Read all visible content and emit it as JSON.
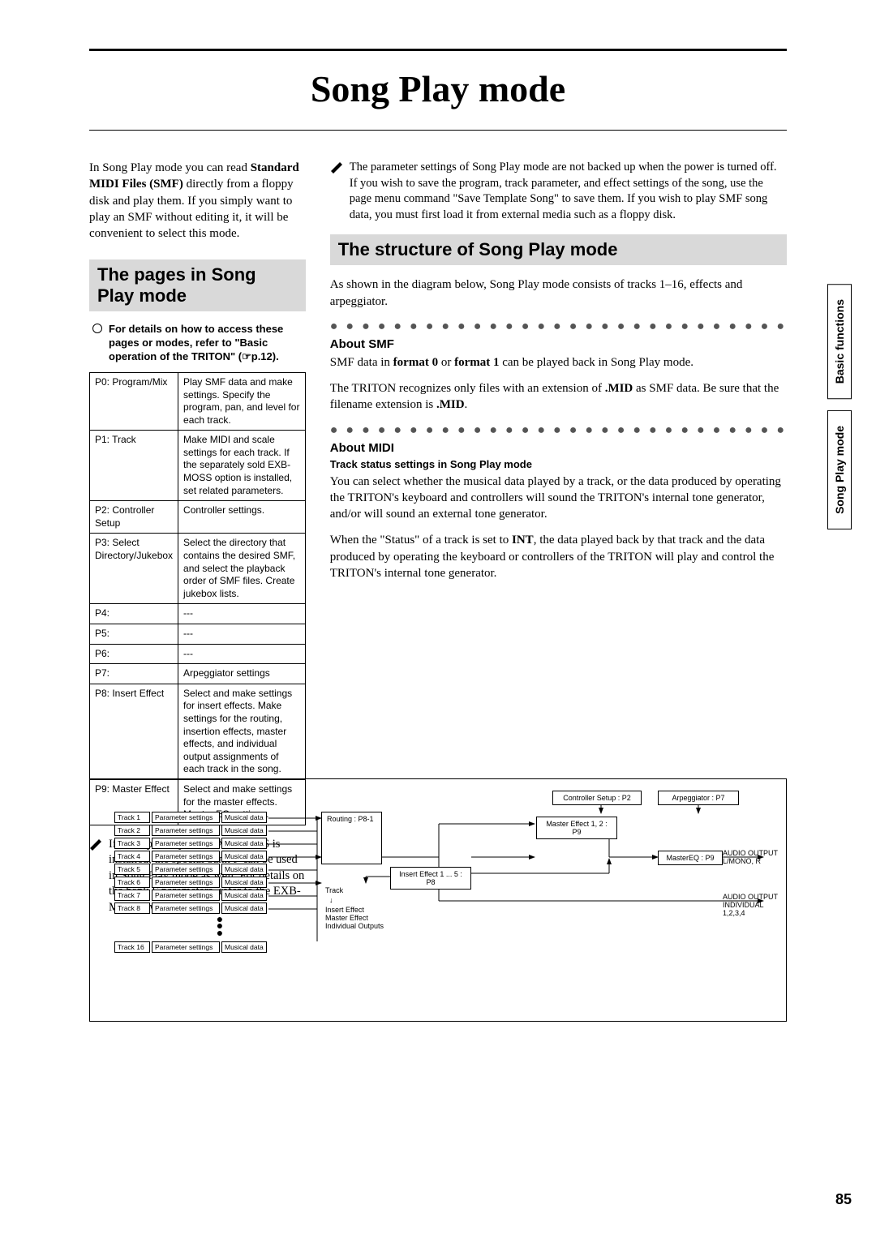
{
  "title": "Song Play mode",
  "intro": {
    "p1a": "In Song Play mode you can read ",
    "p1b": "Standard MIDI Files (SMF)",
    "p1c": " directly from a floppy disk and play them. If you simply want to play an SMF without editing it, it will be convenient to select this mode."
  },
  "left": {
    "heading": "The pages in Song Play mode",
    "hint_a": "For details on how to access these pages or modes, refer to \"Basic operation of the TRITON\" (",
    "hint_b": "p.12).",
    "table": {
      "rows": [
        [
          "P0: Program/Mix",
          "Play SMF data and make settings. Specify the program, pan, and level for each track."
        ],
        [
          "P1: Track",
          "Make MIDI and scale settings for each track. If the separately sold EXB-MOSS option is installed, set related parameters."
        ],
        [
          "P2: Controller Setup",
          "Controller settings."
        ],
        [
          "P3: Select Directory/Jukebox",
          "Select the directory that contains the desired SMF, and select the playback order of SMF files. Create jukebox lists."
        ],
        [
          "P4:",
          "---"
        ],
        [
          "P5:",
          "---"
        ],
        [
          "P6:",
          "---"
        ],
        [
          "P7:",
          "Arpeggiator settings"
        ],
        [
          "P8: Insert Effect",
          "Select and make settings for insert effects. Make settings for the routing, insertion effects, master effects, and individual output assignments of each track in the song."
        ],
        [
          "P9: Master Effect",
          "Select and make settings for the master effects. Master EQ settings."
        ]
      ]
    },
    "note1": "If the separately sold EXB-MOSS is installed, the special bank F can be used in Song Play mode as well. For details on the bank F parameters, refer to the EXB-MOSS owner's manual."
  },
  "right": {
    "note1": "The parameter settings of Song Play mode are not backed up when the power is turned off. If you wish to save the program, track parameter, and effect settings of the song, use the page menu command \"Save Template Song\" to save them. If you wish to play SMF song data, you must first load it from external media such as a floppy disk.",
    "heading": "The structure of Song Play mode",
    "p1": "As shown in the diagram below, Song Play mode consists of tracks 1–16, effects and arpeggiator.",
    "smf_h": "About SMF",
    "smf_a": "SMF data in ",
    "smf_b": "format 0",
    "smf_c": " or ",
    "smf_d": "format 1",
    "smf_e": " can be played back in Song Play mode.",
    "smf_f": "The TRITON recognizes only files with an extension of ",
    "smf_g": ".MID",
    "smf_h2": " as SMF data. Be sure that the filename extension is ",
    "smf_i": ".MID",
    "smf_j": ".",
    "midi_h": "About MIDI",
    "midi_sub": "Track status settings in Song Play mode",
    "midi_p1": "You can select whether the musical data played by a track, or the data produced by operating the TRITON's keyboard and controllers will sound the TRITON's internal tone generator, and/or will sound an external tone generator.",
    "midi_p2a": "When the \"Status\" of a track is set to ",
    "midi_p2b": "INT",
    "midi_p2c": ", the data played back by that track and the data produced by operating the keyboard or controllers of the TRITON will play and control the TRITON's internal tone generator."
  },
  "tabs": [
    "Basic functions",
    "Song Play mode"
  ],
  "page_num": "85",
  "diagram": {
    "tracks": [
      "Track 1",
      "Track 2",
      "Track 3",
      "Track 4",
      "Track 5",
      "Track 6",
      "Track 7",
      "Track 8"
    ],
    "track_last": "Track 16",
    "col_b": "Parameter settings",
    "col_c": "Musical data",
    "routing": "Routing : P8-1",
    "below_routing": [
      "Track",
      "↓",
      "Insert Effect",
      "Master Effect",
      "Individual Outputs"
    ],
    "insert": "Insert Effect 1 ... 5 : P8",
    "master_effect": "Master Effect 1, 2 : P9",
    "master_eq": "MasterEQ : P9",
    "controller": "Controller Setup : P2",
    "arp": "Arpeggiator : P7",
    "out1": "AUDIO OUTPUT L/MONO, R",
    "out2": "AUDIO OUTPUT INDIVIDUAL 1,2,3,4"
  }
}
